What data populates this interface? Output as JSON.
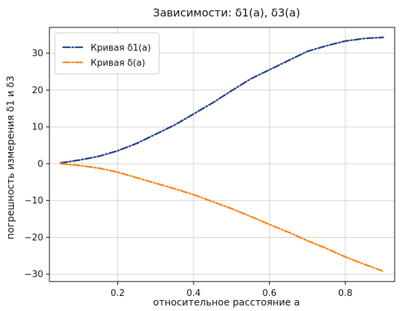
{
  "chart_data": {
    "type": "line",
    "title": "Зависимости: δ1(a), δ3(a)",
    "xlabel": "относительное расстояние a",
    "ylabel": "погрешность измерения δ1 и δ3",
    "xlim": [
      0.02,
      0.93
    ],
    "ylim": [
      -32,
      37
    ],
    "x_ticks": [
      0.2,
      0.4,
      0.6,
      0.8
    ],
    "x_tick_labels": [
      "0.2",
      "0.4",
      "0.6",
      "0.8"
    ],
    "y_ticks": [
      30,
      20,
      10,
      0,
      -10,
      -20,
      -30
    ],
    "y_tick_labels": [
      "30",
      "20",
      "10",
      "0",
      "−10",
      "−20",
      "−30"
    ],
    "grid": true,
    "legend_position": "top-left",
    "series": [
      {
        "name": "Кривая δ1(a)",
        "color": "#1f3c88",
        "line_style": "dashdot",
        "x": [
          0.05,
          0.1,
          0.15,
          0.2,
          0.25,
          0.3,
          0.35,
          0.4,
          0.45,
          0.5,
          0.55,
          0.6,
          0.65,
          0.7,
          0.75,
          0.8,
          0.85,
          0.9
        ],
        "y": [
          0.2,
          1.0,
          2.0,
          3.5,
          5.5,
          8.0,
          10.5,
          13.5,
          16.5,
          19.8,
          23.0,
          25.5,
          28.0,
          30.5,
          32.0,
          33.3,
          34.0,
          34.3
        ]
      },
      {
        "name": "Кривая δ(a)",
        "color": "#ff7f0e",
        "line_style": "dashdot",
        "x": [
          0.05,
          0.1,
          0.15,
          0.2,
          0.25,
          0.3,
          0.35,
          0.4,
          0.45,
          0.5,
          0.55,
          0.6,
          0.65,
          0.7,
          0.75,
          0.8,
          0.85,
          0.9
        ],
        "y": [
          0.0,
          -0.5,
          -1.2,
          -2.3,
          -3.8,
          -5.3,
          -6.8,
          -8.4,
          -10.3,
          -12.2,
          -14.3,
          -16.5,
          -18.6,
          -20.9,
          -23.0,
          -25.3,
          -27.3,
          -29.2
        ]
      }
    ]
  }
}
